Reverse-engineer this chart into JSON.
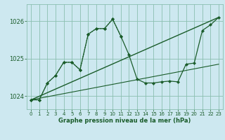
{
  "bg_color": "#cde8f0",
  "grid_color": "#8bbfb0",
  "line_color": "#1a5c2a",
  "xlabel": "Graphe pression niveau de la mer (hPa)",
  "xlim": [
    -0.5,
    23.5
  ],
  "ylim": [
    1023.65,
    1026.45
  ],
  "yticks": [
    1024,
    1025,
    1026
  ],
  "xticks": [
    0,
    1,
    2,
    3,
    4,
    5,
    6,
    7,
    8,
    9,
    10,
    11,
    12,
    13,
    14,
    15,
    16,
    17,
    18,
    19,
    20,
    21,
    22,
    23
  ],
  "line1_x": [
    0,
    23
  ],
  "line1_y": [
    1023.9,
    1026.1
  ],
  "line2_x": [
    0,
    23
  ],
  "line2_y": [
    1023.9,
    1024.85
  ],
  "series3_x": [
    0,
    1,
    2,
    3,
    4,
    5,
    6,
    7,
    8,
    9,
    10,
    11,
    12,
    13,
    14,
    15,
    16,
    17,
    18,
    19,
    20,
    21,
    22,
    23
  ],
  "series3_y": [
    1023.9,
    1023.9,
    1024.35,
    1024.55,
    1024.9,
    1024.9,
    1024.7,
    1025.65,
    1025.8,
    1025.8,
    1026.05,
    1025.6,
    1025.1,
    1024.45,
    1024.35,
    1024.35,
    1024.38,
    1024.4,
    1024.38,
    1024.85,
    1024.88,
    1025.75,
    1025.9,
    1026.1
  ],
  "series4_x": [
    0,
    1,
    2,
    3,
    4,
    5,
    6,
    7,
    8,
    9,
    10,
    11
  ],
  "series4_y": [
    1023.9,
    1023.9,
    1024.35,
    1024.55,
    1024.9,
    1024.9,
    1024.7,
    1025.65,
    1025.8,
    1025.8,
    1026.05,
    1025.6
  ]
}
